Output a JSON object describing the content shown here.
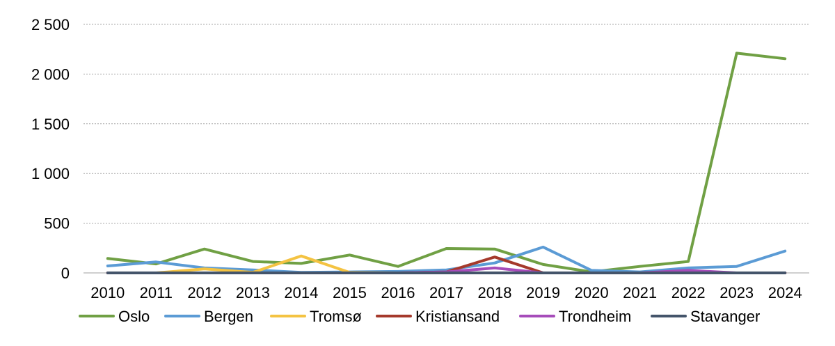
{
  "chart_data": {
    "type": "line",
    "title": "",
    "xlabel": "",
    "ylabel": "",
    "categories": [
      "2010",
      "2011",
      "2012",
      "2013",
      "2014",
      "2015",
      "2016",
      "2017",
      "2018",
      "2019",
      "2020",
      "2021",
      "2022",
      "2023",
      "2024"
    ],
    "ylim": [
      0,
      2500
    ],
    "yticks": [
      {
        "value": 0,
        "label": "0"
      },
      {
        "value": 500,
        "label": "500"
      },
      {
        "value": 1000,
        "label": "1 000"
      },
      {
        "value": 1500,
        "label": "1 500"
      },
      {
        "value": 2000,
        "label": "2 000"
      },
      {
        "value": 2500,
        "label": "2 500"
      }
    ],
    "grid": true,
    "legend_position": "bottom",
    "series": [
      {
        "name": "Oslo",
        "color": "#70a044",
        "values": [
          145,
          90,
          240,
          115,
          95,
          180,
          65,
          245,
          240,
          85,
          10,
          65,
          115,
          2210,
          2155
        ]
      },
      {
        "name": "Bergen",
        "color": "#5b9bd5",
        "values": [
          70,
          110,
          50,
          30,
          5,
          10,
          15,
          30,
          100,
          260,
          25,
          10,
          50,
          65,
          220
        ]
      },
      {
        "name": "Tromsø",
        "color": "#f4c342",
        "values": [
          0,
          0,
          40,
          5,
          170,
          5,
          0,
          0,
          0,
          0,
          0,
          0,
          0,
          0,
          0
        ]
      },
      {
        "name": "Kristiansand",
        "color": "#a5392b",
        "values": [
          0,
          0,
          0,
          0,
          0,
          0,
          0,
          10,
          160,
          0,
          0,
          0,
          0,
          0,
          0
        ]
      },
      {
        "name": "Trondheim",
        "color": "#a64cba",
        "values": [
          0,
          0,
          0,
          0,
          0,
          0,
          0,
          10,
          50,
          0,
          0,
          0,
          25,
          0,
          0
        ]
      },
      {
        "name": "Stavanger",
        "color": "#44546a",
        "values": [
          0,
          0,
          0,
          0,
          0,
          0,
          0,
          0,
          0,
          0,
          0,
          0,
          0,
          0,
          0
        ]
      }
    ]
  }
}
